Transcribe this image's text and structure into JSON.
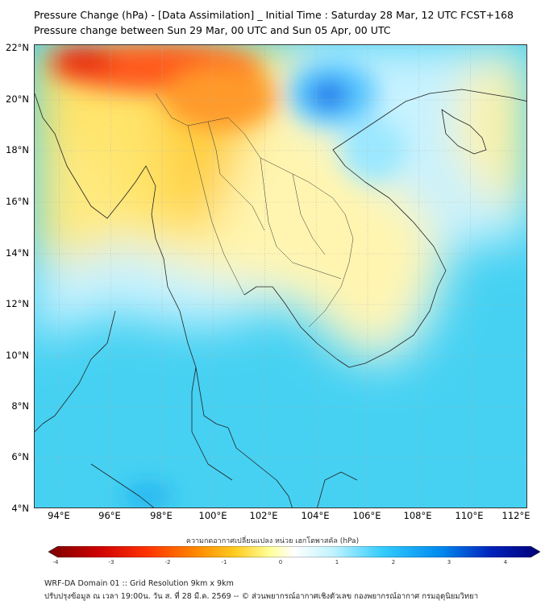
{
  "title_line1": "Pressure Change (hPa) - [Data Assimilation] _ Initial Time : Saturday 28 Mar, 12 UTC FCST+168",
  "title_line2": "Pressure change between Sun 29 Mar, 00 UTC and Sun 05 Apr, 00 UTC",
  "map": {
    "lat_labels": [
      "22°N",
      "20°N",
      "18°N",
      "16°N",
      "14°N",
      "12°N",
      "10°N",
      "8°N",
      "6°N",
      "4°N"
    ],
    "lon_labels": [
      "94°E",
      "96°E",
      "98°E",
      "100°E",
      "102°E",
      "104°E",
      "106°E",
      "108°E",
      "110°E",
      "112°E"
    ],
    "lat_range": [
      4,
      22
    ],
    "lon_range": [
      93,
      112.2
    ],
    "grid": true
  },
  "colorbar": {
    "title": "ความกดอากาศเปลี่ยนแปลง หน่วย เฮกโตพาสคัล (hPa)",
    "ticks": [
      "-4",
      "-3",
      "-2",
      "-1",
      "0",
      "1",
      "2",
      "3",
      "4"
    ],
    "range": [
      -4,
      4
    ],
    "colors": [
      "#7a0000",
      "#cc0000",
      "#ff3300",
      "#ff8800",
      "#ffcc22",
      "#ffff99",
      "#ffffff",
      "#bff3ff",
      "#33ccff",
      "#0088ee",
      "#0022bb",
      "#000077"
    ]
  },
  "footer_line1": "WRF-DA Domain 01 :: Grid Resolution 9km x 9km",
  "footer_line2": "ปรับปรุงข้อมูล ณ เวลา 19:00น. วัน ส. ที่ 28 มี.ค. 2569 -- © ส่วนพยากรณ์อากาศเชิงตัวเลข กองพยากรณ์อากาศ กรมอุตุนิยมวิทยา"
}
